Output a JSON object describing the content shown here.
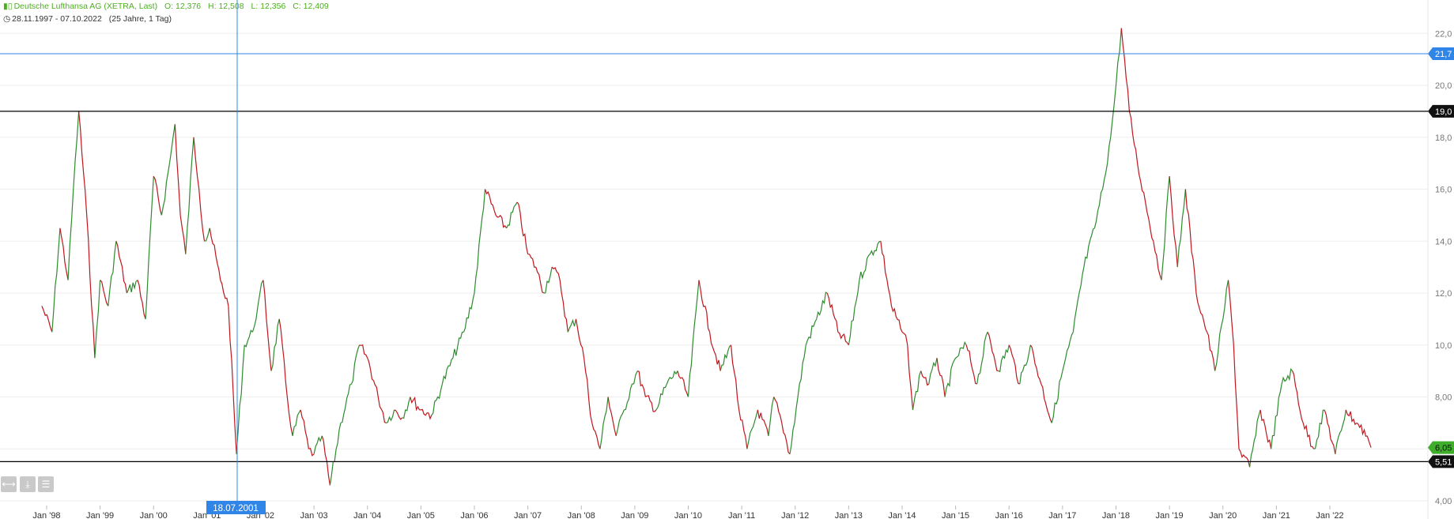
{
  "header": {
    "instrument": "Deutsche Lufthansa AG (XETRA, Last)",
    "open": "O: 12,376",
    "high": "H: 12,508",
    "low": "L: 12,356",
    "close": "C: 12,409",
    "range": "28.11.1997 - 07.10.2022",
    "duration": "(25 Jahre, 1 Tag)"
  },
  "crosshair": {
    "date_label": "18.07.2001",
    "price_label": "21,7",
    "color": "#2f86e8"
  },
  "colors": {
    "up": "#2e8b2e",
    "down": "#c0161d",
    "accent": "#2f86e8",
    "last_badge": "#3fae2a"
  },
  "toolbar": {
    "icons": [
      "expand-horizontal-icon",
      "download-icon",
      "layers-icon"
    ]
  },
  "chart_data": {
    "type": "line",
    "title": "Deutsche Lufthansa AG (XETRA, Last)",
    "ylim": [
      4.0,
      22.4
    ],
    "yticks": [
      "4,00",
      "6,00",
      "8,00",
      "10,00",
      "12,00",
      "14,00",
      "16,00",
      "18,00",
      "20,00",
      "22,00"
    ],
    "xticks": [
      "Jan '98",
      "Jan '99",
      "Jan '00",
      "Jan '01",
      "Jan '02",
      "Jan '03",
      "Jan '04",
      "Jan '05",
      "Jan '06",
      "Jan '07",
      "Jan '08",
      "Jan '09",
      "Jan '10",
      "Jan '11",
      "Jan '12",
      "Jan '13",
      "Jan '14",
      "Jan '15",
      "Jan '16",
      "Jan '17",
      "Jan '18",
      "Jan '19",
      "Jan '20",
      "Jan '21",
      "Jan '22"
    ],
    "grid": true,
    "horizontal_lines": [
      {
        "value": 19.0,
        "label": "19,0",
        "color": "#000000"
      },
      {
        "value": 5.51,
        "label": "5,51",
        "color": "#000000"
      }
    ],
    "last_price": {
      "value": 6.05,
      "label": "6,05"
    },
    "series": [
      {
        "x": [
          1997.91,
          1998.1,
          1998.25,
          1998.4,
          1998.5,
          1998.6,
          1998.75,
          1998.9,
          1999.0,
          1999.15,
          1999.3,
          1999.5,
          1999.7,
          1999.85,
          2000.0,
          2000.15,
          2000.3,
          2000.4,
          2000.5,
          2000.6,
          2000.75,
          2000.85,
          2000.95,
          2001.05,
          2001.25,
          2001.4,
          2001.55,
          2001.7,
          2001.85,
          2001.95,
          2002.05,
          2002.2,
          2002.35,
          2002.5,
          2002.6,
          2002.75,
          2002.9,
          2003.0,
          2003.15,
          2003.3,
          2003.5,
          2003.7,
          2003.85,
          2004.0,
          2004.2,
          2004.35,
          2004.5,
          2004.65,
          2004.8,
          2005.0,
          2005.2,
          2005.4,
          2005.6,
          2005.8,
          2006.0,
          2006.2,
          2006.4,
          2006.6,
          2006.8,
          2007.0,
          2007.15,
          2007.3,
          2007.45,
          2007.6,
          2007.75,
          2007.9,
          2008.05,
          2008.2,
          2008.35,
          2008.5,
          2008.65,
          2008.8,
          2008.95,
          2009.05,
          2009.2,
          2009.4,
          2009.6,
          2009.8,
          2010.0,
          2010.2,
          2010.4,
          2010.6,
          2010.8,
          2010.95,
          2011.1,
          2011.3,
          2011.5,
          2011.6,
          2011.75,
          2011.9,
          2012.05,
          2012.2,
          2012.4,
          2012.6,
          2012.8,
          2013.0,
          2013.2,
          2013.4,
          2013.6,
          2013.8,
          2014.0,
          2014.1,
          2014.2,
          2014.35,
          2014.5,
          2014.65,
          2014.8,
          2015.0,
          2015.2,
          2015.4,
          2015.6,
          2015.8,
          2016.0,
          2016.2,
          2016.4,
          2016.6,
          2016.8,
          2017.0,
          2017.2,
          2017.4,
          2017.6,
          2017.75,
          2017.9,
          2018.0,
          2018.1,
          2018.25,
          2018.4,
          2018.55,
          2018.7,
          2018.85,
          2019.0,
          2019.15,
          2019.3,
          2019.5,
          2019.7,
          2019.85,
          2020.0,
          2020.1,
          2020.2,
          2020.3,
          2020.5,
          2020.7,
          2020.9,
          2021.1,
          2021.3,
          2021.5,
          2021.7,
          2021.9,
          2022.1,
          2022.3,
          2022.5,
          2022.7,
          2022.77
        ],
        "values": [
          11.5,
          10.5,
          14.5,
          12.5,
          16.0,
          19.0,
          15.0,
          9.5,
          12.5,
          11.5,
          14.0,
          12.0,
          12.5,
          11.0,
          16.5,
          15.0,
          17.0,
          18.5,
          15.0,
          13.5,
          18.0,
          16.0,
          14.0,
          14.5,
          12.5,
          11.5,
          5.8,
          10.0,
          10.5,
          11.5,
          12.5,
          9.0,
          11.0,
          8.0,
          6.5,
          7.5,
          6.0,
          5.8,
          6.5,
          4.6,
          7.0,
          8.5,
          10.0,
          9.5,
          8.0,
          7.0,
          7.5,
          7.2,
          8.0,
          7.5,
          7.3,
          8.5,
          9.5,
          10.5,
          12.0,
          16.0,
          15.0,
          14.5,
          15.5,
          13.5,
          13.0,
          12.0,
          13.0,
          12.5,
          10.5,
          11.0,
          9.5,
          7.0,
          6.0,
          8.0,
          6.5,
          7.5,
          8.5,
          9.0,
          8.0,
          7.5,
          8.5,
          9.0,
          8.0,
          12.5,
          10.5,
          9.0,
          10.0,
          7.5,
          6.0,
          7.5,
          6.5,
          8.0,
          7.0,
          5.8,
          8.0,
          10.0,
          11.0,
          12.0,
          10.5,
          10.0,
          12.5,
          13.5,
          14.0,
          11.5,
          10.5,
          10.0,
          7.5,
          9.0,
          8.5,
          9.5,
          8.0,
          9.5,
          10.0,
          8.5,
          10.5,
          9.0,
          10.0,
          8.5,
          10.0,
          8.5,
          7.0,
          9.0,
          10.5,
          13.0,
          14.5,
          16.0,
          18.0,
          20.0,
          22.2,
          19.0,
          17.0,
          15.5,
          14.0,
          12.5,
          16.5,
          13.0,
          16.0,
          12.0,
          10.5,
          9.0,
          11.0,
          12.5,
          10.0,
          6.0,
          5.3,
          7.5,
          6.0,
          8.5,
          9.0,
          7.0,
          6.0,
          7.5,
          5.8,
          7.5,
          7.0,
          6.5,
          6.05
        ]
      }
    ]
  }
}
